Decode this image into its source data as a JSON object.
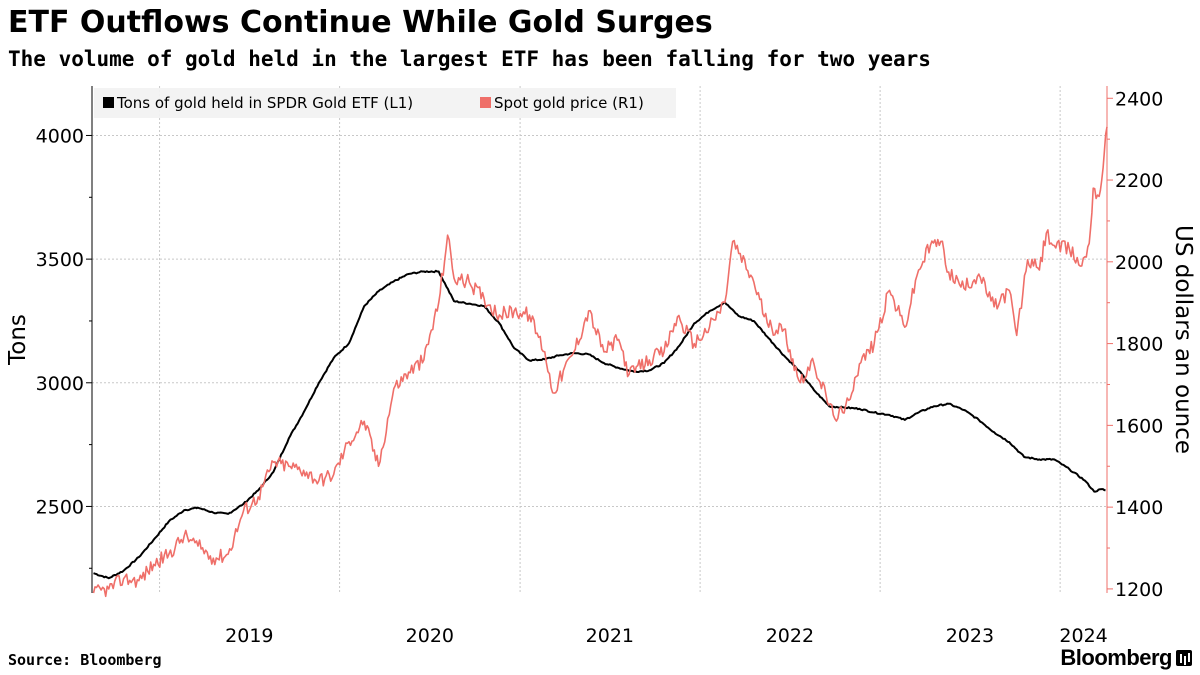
{
  "header": {
    "title": "ETF Outflows Continue While Gold Surges",
    "subtitle": "The volume of gold held in the largest ETF has been falling for two years"
  },
  "footer": {
    "source": "Source: Bloomberg",
    "brand": "Bloomberg"
  },
  "colors": {
    "etf": "#000000",
    "gold": "#ef6f69",
    "grid": "#c8c8c8"
  },
  "chart_data": {
    "type": "line",
    "title": "ETF Outflows Continue While Gold Surges",
    "subtitle": "The volume of gold held in the largest ETF has been falling for two years",
    "xlabel": "",
    "ylabel_left": "Tons",
    "ylabel_right": "US dollars an ounce",
    "x_ticks": [
      "2019",
      "2020",
      "2021",
      "2022",
      "2023",
      "2024"
    ],
    "xlim": [
      "2018-08-17",
      "2024-04-05"
    ],
    "ylim_left": [
      2150,
      4200
    ],
    "ylim_right": [
      1190,
      2430
    ],
    "yticks_left": [
      2500,
      3000,
      3500,
      4000
    ],
    "yticks_right": [
      1200,
      1400,
      1600,
      1800,
      2000,
      2200,
      2400
    ],
    "grid": true,
    "legend": "top-left",
    "series": [
      {
        "name": "Tons of gold held in SPDR Gold ETF  (L1)",
        "axis": "left",
        "color": "#000000",
        "points": [
          [
            "2018-08-20",
            2230
          ],
          [
            "2018-09-20",
            2210
          ],
          [
            "2018-10-20",
            2240
          ],
          [
            "2018-11-20",
            2295
          ],
          [
            "2018-12-20",
            2365
          ],
          [
            "2019-01-20",
            2440
          ],
          [
            "2019-02-20",
            2485
          ],
          [
            "2019-03-20",
            2495
          ],
          [
            "2019-04-20",
            2475
          ],
          [
            "2019-05-20",
            2470
          ],
          [
            "2019-06-20",
            2510
          ],
          [
            "2019-07-20",
            2565
          ],
          [
            "2019-08-20",
            2640
          ],
          [
            "2019-09-20",
            2775
          ],
          [
            "2019-10-20",
            2880
          ],
          [
            "2019-11-20",
            3000
          ],
          [
            "2019-12-20",
            3100
          ],
          [
            "2020-01-20",
            3160
          ],
          [
            "2020-02-20",
            3310
          ],
          [
            "2020-03-20",
            3370
          ],
          [
            "2020-04-20",
            3410
          ],
          [
            "2020-05-20",
            3440
          ],
          [
            "2020-06-20",
            3450
          ],
          [
            "2020-07-20",
            3450
          ],
          [
            "2020-08-20",
            3330
          ],
          [
            "2020-09-20",
            3320
          ],
          [
            "2020-10-20",
            3310
          ],
          [
            "2020-11-20",
            3240
          ],
          [
            "2020-12-20",
            3140
          ],
          [
            "2021-01-20",
            3090
          ],
          [
            "2021-02-20",
            3095
          ],
          [
            "2021-03-20",
            3110
          ],
          [
            "2021-04-20",
            3120
          ],
          [
            "2021-05-20",
            3115
          ],
          [
            "2021-06-20",
            3080
          ],
          [
            "2021-07-20",
            3060
          ],
          [
            "2021-08-20",
            3045
          ],
          [
            "2021-09-20",
            3050
          ],
          [
            "2021-10-20",
            3080
          ],
          [
            "2021-11-20",
            3150
          ],
          [
            "2021-12-20",
            3240
          ],
          [
            "2022-01-20",
            3290
          ],
          [
            "2022-02-20",
            3325
          ],
          [
            "2022-03-20",
            3270
          ],
          [
            "2022-04-20",
            3250
          ],
          [
            "2022-05-20",
            3180
          ],
          [
            "2022-06-20",
            3110
          ],
          [
            "2022-07-20",
            3050
          ],
          [
            "2022-08-20",
            2970
          ],
          [
            "2022-09-20",
            2905
          ],
          [
            "2022-10-20",
            2900
          ],
          [
            "2022-11-20",
            2895
          ],
          [
            "2022-12-20",
            2880
          ],
          [
            "2023-01-20",
            2870
          ],
          [
            "2023-02-20",
            2850
          ],
          [
            "2023-03-20",
            2880
          ],
          [
            "2023-04-20",
            2905
          ],
          [
            "2023-05-20",
            2915
          ],
          [
            "2023-06-20",
            2890
          ],
          [
            "2023-07-20",
            2850
          ],
          [
            "2023-08-20",
            2800
          ],
          [
            "2023-09-20",
            2760
          ],
          [
            "2023-10-20",
            2700
          ],
          [
            "2023-11-20",
            2690
          ],
          [
            "2023-12-20",
            2690
          ],
          [
            "2024-01-20",
            2650
          ],
          [
            "2024-02-20",
            2605
          ],
          [
            "2024-03-10",
            2560
          ],
          [
            "2024-03-25",
            2570
          ],
          [
            "2024-04-02",
            2565
          ]
        ]
      },
      {
        "name": "Spot gold price (R1)",
        "axis": "right",
        "color": "#ef6f69",
        "points": [
          [
            "2018-08-20",
            1190
          ],
          [
            "2018-09-20",
            1200
          ],
          [
            "2018-10-20",
            1225
          ],
          [
            "2018-11-20",
            1220
          ],
          [
            "2018-12-20",
            1260
          ],
          [
            "2019-01-20",
            1285
          ],
          [
            "2019-02-20",
            1330
          ],
          [
            "2019-03-20",
            1305
          ],
          [
            "2019-04-20",
            1275
          ],
          [
            "2019-05-20",
            1285
          ],
          [
            "2019-06-20",
            1390
          ],
          [
            "2019-07-20",
            1425
          ],
          [
            "2019-08-20",
            1510
          ],
          [
            "2019-09-20",
            1500
          ],
          [
            "2019-10-20",
            1490
          ],
          [
            "2019-11-20",
            1465
          ],
          [
            "2019-12-20",
            1480
          ],
          [
            "2020-01-20",
            1560
          ],
          [
            "2020-02-20",
            1610
          ],
          [
            "2020-03-20",
            1500
          ],
          [
            "2020-04-20",
            1690
          ],
          [
            "2020-05-20",
            1730
          ],
          [
            "2020-06-20",
            1760
          ],
          [
            "2020-07-20",
            1900
          ],
          [
            "2020-08-07",
            2065
          ],
          [
            "2020-08-20",
            1960
          ],
          [
            "2020-09-20",
            1950
          ],
          [
            "2020-10-20",
            1910
          ],
          [
            "2020-11-20",
            1870
          ],
          [
            "2020-12-20",
            1880
          ],
          [
            "2021-01-20",
            1870
          ],
          [
            "2021-02-20",
            1780
          ],
          [
            "2021-03-08",
            1680
          ],
          [
            "2021-04-20",
            1780
          ],
          [
            "2021-05-20",
            1880
          ],
          [
            "2021-06-20",
            1780
          ],
          [
            "2021-07-20",
            1810
          ],
          [
            "2021-08-10",
            1725
          ],
          [
            "2021-09-20",
            1760
          ],
          [
            "2021-10-20",
            1780
          ],
          [
            "2021-11-16",
            1865
          ],
          [
            "2021-12-20",
            1800
          ],
          [
            "2022-01-20",
            1840
          ],
          [
            "2022-02-20",
            1900
          ],
          [
            "2022-03-08",
            2050
          ],
          [
            "2022-04-20",
            1950
          ],
          [
            "2022-05-20",
            1840
          ],
          [
            "2022-06-20",
            1835
          ],
          [
            "2022-07-20",
            1710
          ],
          [
            "2022-08-20",
            1750
          ],
          [
            "2022-09-28",
            1625
          ],
          [
            "2022-10-20",
            1630
          ],
          [
            "2022-11-20",
            1750
          ],
          [
            "2022-12-20",
            1800
          ],
          [
            "2023-01-20",
            1930
          ],
          [
            "2023-02-20",
            1840
          ],
          [
            "2023-03-20",
            1980
          ],
          [
            "2023-04-13",
            2040
          ],
          [
            "2023-05-04",
            2050
          ],
          [
            "2023-05-20",
            1975
          ],
          [
            "2023-06-20",
            1935
          ],
          [
            "2023-07-20",
            1970
          ],
          [
            "2023-08-20",
            1890
          ],
          [
            "2023-09-20",
            1930
          ],
          [
            "2023-10-05",
            1820
          ],
          [
            "2023-10-27",
            2005
          ],
          [
            "2023-11-20",
            1980
          ],
          [
            "2023-12-04",
            2070
          ],
          [
            "2023-12-20",
            2040
          ],
          [
            "2024-01-20",
            2030
          ],
          [
            "2024-02-14",
            1990
          ],
          [
            "2024-02-29",
            2045
          ],
          [
            "2024-03-08",
            2180
          ],
          [
            "2024-03-20",
            2160
          ],
          [
            "2024-03-28",
            2230
          ],
          [
            "2024-04-05",
            2330
          ]
        ]
      }
    ]
  }
}
